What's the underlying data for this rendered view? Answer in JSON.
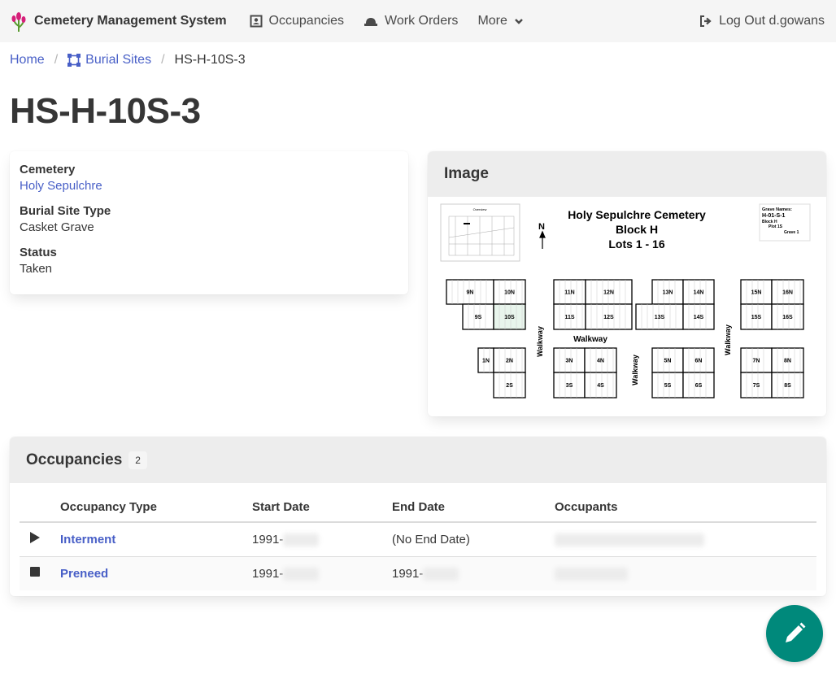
{
  "nav": {
    "brand": "Cemetery Management System",
    "items": [
      {
        "label": "Occupancies",
        "icon": "occupancy-icon"
      },
      {
        "label": "Work Orders",
        "icon": "hard-hat-icon"
      },
      {
        "label": "More",
        "icon": "chevron-down-icon"
      }
    ],
    "logout": "Log Out d.gowans"
  },
  "breadcrumb": {
    "home": "Home",
    "burial_sites": "Burial Sites",
    "current": "HS-H-10S-3"
  },
  "title": "HS-H-10S-3",
  "details": [
    {
      "label": "Cemetery",
      "value": "Holy Sepulchre",
      "link": true
    },
    {
      "label": "Burial Site Type",
      "value": "Casket Grave"
    },
    {
      "label": "Status",
      "value": "Taken"
    }
  ],
  "image": {
    "heading": "Image",
    "map": {
      "title": [
        "Holy Sepulchre Cemetery",
        "Block H",
        "Lots 1 - 16"
      ],
      "north": "N",
      "overview": "Overview",
      "legend": [
        "Grave Names:",
        "H-01-S-1",
        "Block H",
        "Plot 1S",
        "Grave 1"
      ],
      "walkway": "Walkway",
      "highlight": "10S",
      "highlight_color": "#e8f5ec"
    },
    "lots": [
      "9N",
      "10N",
      "9S",
      "10S",
      "11N",
      "12N",
      "11S",
      "12S",
      "13N",
      "14N",
      "13S",
      "14S",
      "15N",
      "16N",
      "15S",
      "16S",
      "1N",
      "2N",
      "2S",
      "3N",
      "4N",
      "3S",
      "4S",
      "5N",
      "6N",
      "5S",
      "6S",
      "7N",
      "8N",
      "7S",
      "8S"
    ]
  },
  "occupancies": {
    "heading": "Occupancies",
    "count": "2",
    "columns": [
      "Occupancy Type",
      "Start Date",
      "End Date",
      "Occupants"
    ],
    "rows": [
      {
        "icon": "play-icon",
        "type": "Interment",
        "start": "1991-",
        "end": "(No End Date)"
      },
      {
        "icon": "stop-icon",
        "type": "Preneed",
        "start": "1991-",
        "end": "1991-"
      }
    ]
  },
  "colors": {
    "link": "#485fc7",
    "fab": "#00897b"
  }
}
